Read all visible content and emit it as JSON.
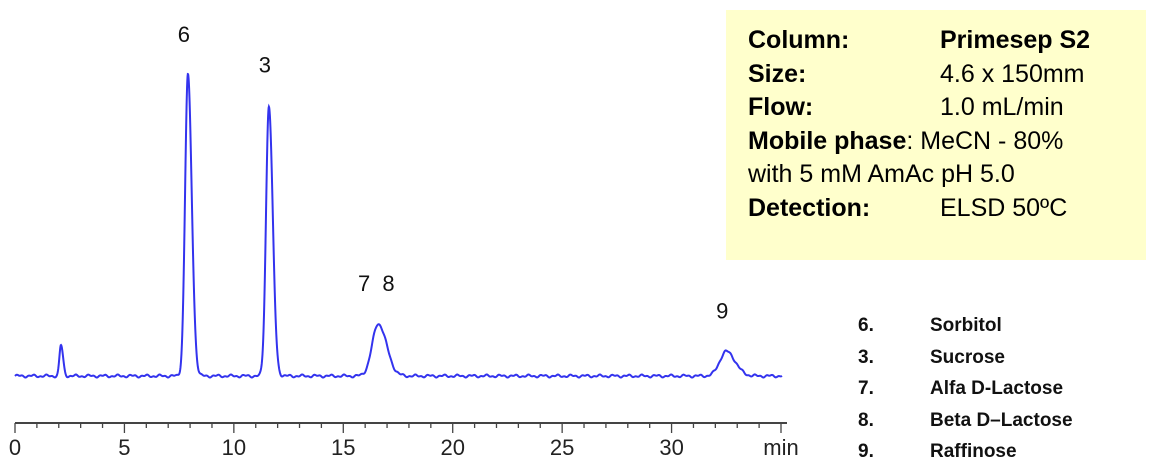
{
  "chart_data": {
    "type": "line",
    "title": "",
    "xlabel": "",
    "ylabel": "",
    "x_unit": "min",
    "xlim": [
      0,
      35
    ],
    "x_ticks": [
      0,
      5,
      10,
      15,
      20,
      25,
      30
    ],
    "series": [
      {
        "color": "#3333ee",
        "baseline": 0.02,
        "peaks": [
          {
            "label": "",
            "x": 2.1,
            "height": 0.12,
            "width": 0.07
          },
          {
            "label": "6",
            "x": 7.9,
            "height": 1.0,
            "width": 0.13
          },
          {
            "label": "3",
            "x": 11.6,
            "height": 0.9,
            "width": 0.13
          },
          {
            "label": "7 8",
            "x": 16.6,
            "height": 0.19,
            "width": 0.28
          },
          {
            "label": "9",
            "x": 32.5,
            "height": 0.1,
            "width": 0.3
          }
        ]
      }
    ]
  },
  "conditions": {
    "column_label": "Column:",
    "column_value": "Primesep S2",
    "size_label": "Size:",
    "size_value": "4.6 x 150mm",
    "flow_label": "Flow:",
    "flow_value": "1.0 mL/min",
    "mobile_label": "Mobile phase",
    "mobile_value": ": MeCN - 80%",
    "mobile_value2": "with 5 mM AmAc pH 5.0",
    "detection_label": "Detection:",
    "detection_value": "ELSD 50ºC"
  },
  "compounds": [
    {
      "number": "6.",
      "name": "Sorbitol"
    },
    {
      "number": "3.",
      "name": "Sucrose"
    },
    {
      "number": "7.",
      "name": "Alfa D-Lactose"
    },
    {
      "number": "8.",
      "name": "Beta D–Lactose"
    },
    {
      "number": "9.",
      "name": "Raffinose"
    }
  ]
}
